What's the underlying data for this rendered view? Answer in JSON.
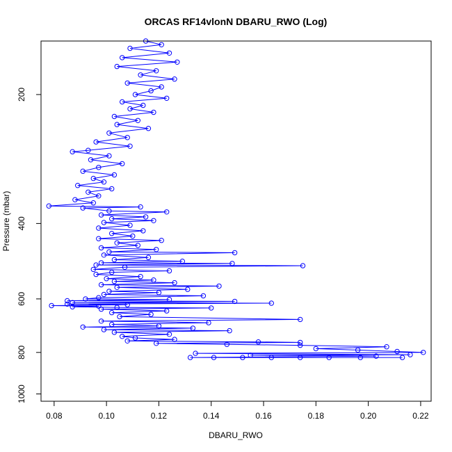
{
  "chart_data": {
    "type": "line",
    "title": "ORCAS RF14vlonN DBARU_RWO (Log)",
    "xlabel": "DBARU_RWO",
    "ylabel": "Pressure (mbar)",
    "xlim": [
      0.075,
      0.224
    ],
    "ylim": [
      1040,
      150
    ],
    "y_scale": "log",
    "y_inverted": true,
    "x_ticks": [
      0.08,
      0.1,
      0.12,
      0.14,
      0.16,
      0.18,
      0.2,
      0.22
    ],
    "x_tick_labels": [
      "0.08",
      "0.10",
      "0.12",
      "0.14",
      "0.16",
      "0.18",
      "0.20",
      "0.22"
    ],
    "y_ticks": [
      200,
      400,
      600,
      800,
      1000
    ],
    "y_tick_labels": [
      "200",
      "400",
      "600",
      "800",
      "1000"
    ],
    "grid": false,
    "series": [
      {
        "color": "#0000ff",
        "marker": "open-circle",
        "points": [
          [
            0.115,
            150
          ],
          [
            0.121,
            153
          ],
          [
            0.109,
            156
          ],
          [
            0.124,
            160
          ],
          [
            0.106,
            164
          ],
          [
            0.127,
            168
          ],
          [
            0.104,
            172
          ],
          [
            0.119,
            176
          ],
          [
            0.113,
            180
          ],
          [
            0.126,
            184
          ],
          [
            0.108,
            188
          ],
          [
            0.121,
            192
          ],
          [
            0.117,
            196
          ],
          [
            0.111,
            200
          ],
          [
            0.123,
            204
          ],
          [
            0.106,
            208
          ],
          [
            0.114,
            212
          ],
          [
            0.109,
            216
          ],
          [
            0.118,
            220
          ],
          [
            0.103,
            225
          ],
          [
            0.112,
            230
          ],
          [
            0.104,
            235
          ],
          [
            0.116,
            240
          ],
          [
            0.101,
            246
          ],
          [
            0.108,
            252
          ],
          [
            0.096,
            258
          ],
          [
            0.109,
            264
          ],
          [
            0.093,
            270
          ],
          [
            0.087,
            272
          ],
          [
            0.101,
            278
          ],
          [
            0.094,
            284
          ],
          [
            0.106,
            290
          ],
          [
            0.097,
            296
          ],
          [
            0.091,
            302
          ],
          [
            0.103,
            308
          ],
          [
            0.095,
            314
          ],
          [
            0.099,
            320
          ],
          [
            0.089,
            326
          ],
          [
            0.102,
            332
          ],
          [
            0.093,
            338
          ],
          [
            0.097,
            345
          ],
          [
            0.088,
            352
          ],
          [
            0.095,
            358
          ],
          [
            0.078,
            364
          ],
          [
            0.113,
            366
          ],
          [
            0.091,
            368
          ],
          [
            0.101,
            374
          ],
          [
            0.123,
            376
          ],
          [
            0.098,
            382
          ],
          [
            0.115,
            386
          ],
          [
            0.102,
            390
          ],
          [
            0.118,
            394
          ],
          [
            0.099,
            398
          ],
          [
            0.109,
            404
          ],
          [
            0.097,
            410
          ],
          [
            0.114,
            416
          ],
          [
            0.102,
            422
          ],
          [
            0.11,
            428
          ],
          [
            0.097,
            434
          ],
          [
            0.121,
            438
          ],
          [
            0.104,
            444
          ],
          [
            0.112,
            450
          ],
          [
            0.098,
            456
          ],
          [
            0.119,
            460
          ],
          [
            0.101,
            466
          ],
          [
            0.149,
            468
          ],
          [
            0.099,
            474
          ],
          [
            0.116,
            480
          ],
          [
            0.103,
            486
          ],
          [
            0.129,
            490
          ],
          [
            0.098,
            494
          ],
          [
            0.148,
            496
          ],
          [
            0.096,
            500
          ],
          [
            0.175,
            502
          ],
          [
            0.107,
            506
          ],
          [
            0.095,
            512
          ],
          [
            0.124,
            516
          ],
          [
            0.102,
            520
          ],
          [
            0.096,
            526
          ],
          [
            0.113,
            532
          ],
          [
            0.1,
            538
          ],
          [
            0.118,
            542
          ],
          [
            0.103,
            546
          ],
          [
            0.126,
            550
          ],
          [
            0.098,
            556
          ],
          [
            0.143,
            560
          ],
          [
            0.104,
            564
          ],
          [
            0.131,
            570
          ],
          [
            0.101,
            576
          ],
          [
            0.12,
            580
          ],
          [
            0.099,
            586
          ],
          [
            0.137,
            590
          ],
          [
            0.097,
            596
          ],
          [
            0.092,
            600
          ],
          [
            0.124,
            602
          ],
          [
            0.085,
            606
          ],
          [
            0.149,
            608
          ],
          [
            0.087,
            612
          ],
          [
            0.163,
            614
          ],
          [
            0.085,
            617
          ],
          [
            0.108,
            619
          ],
          [
            0.079,
            622
          ],
          [
            0.097,
            624
          ],
          [
            0.087,
            626
          ],
          [
            0.104,
            628
          ],
          [
            0.14,
            630
          ],
          [
            0.098,
            634
          ],
          [
            0.123,
            640
          ],
          [
            0.102,
            646
          ],
          [
            0.117,
            652
          ],
          [
            0.105,
            660
          ],
          [
            0.174,
            670
          ],
          [
            0.098,
            676
          ],
          [
            0.139,
            682
          ],
          [
            0.102,
            688
          ],
          [
            0.12,
            694
          ],
          [
            0.091,
            698
          ],
          [
            0.133,
            702
          ],
          [
            0.099,
            708
          ],
          [
            0.147,
            712
          ],
          [
            0.103,
            718
          ],
          [
            0.124,
            726
          ],
          [
            0.106,
            734
          ],
          [
            0.111,
            740
          ],
          [
            0.126,
            746
          ],
          [
            0.108,
            752
          ],
          [
            0.158,
            756
          ],
          [
            0.174,
            758
          ],
          [
            0.119,
            762
          ],
          [
            0.146,
            766
          ],
          [
            0.174,
            770
          ],
          [
            0.207,
            776
          ],
          [
            0.18,
            784
          ],
          [
            0.196,
            790
          ],
          [
            0.211,
            796
          ],
          [
            0.221,
            800
          ],
          [
            0.134,
            804
          ],
          [
            0.216,
            810
          ],
          [
            0.155,
            812
          ],
          [
            0.203,
            816
          ],
          [
            0.132,
            822
          ],
          [
            0.141,
            822
          ],
          [
            0.152,
            822
          ],
          [
            0.163,
            822
          ],
          [
            0.174,
            822
          ],
          [
            0.185,
            822
          ],
          [
            0.197,
            822
          ],
          [
            0.213,
            822
          ]
        ]
      }
    ]
  }
}
